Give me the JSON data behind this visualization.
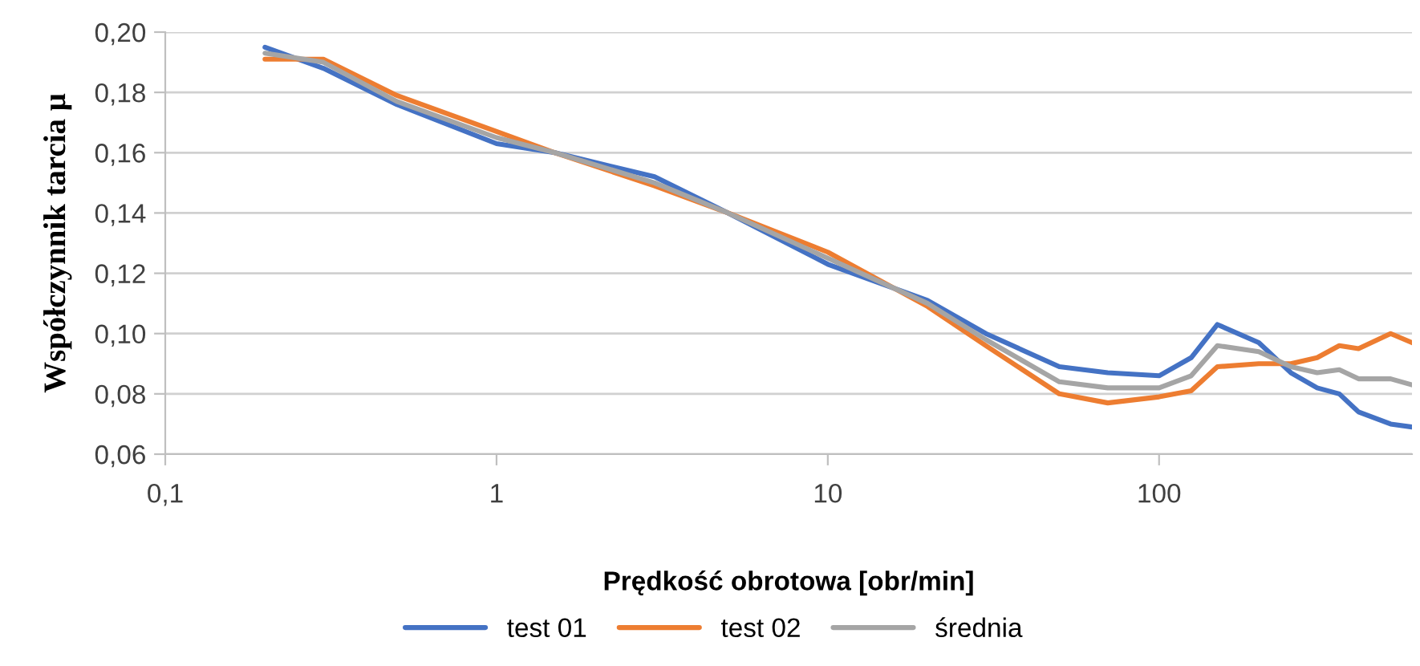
{
  "chart_data": {
    "type": "line",
    "xlabel": "Prędkość obrotowa [obr/min]",
    "ylabel": "Współczynnik tarcia μ",
    "x": [
      0.2,
      0.3,
      0.5,
      1,
      1.5,
      3,
      5,
      10,
      20,
      30,
      50,
      70,
      100,
      125,
      150,
      200,
      250,
      300,
      350,
      400,
      500,
      580
    ],
    "series": [
      {
        "name": "test 01",
        "color": "#4472c4",
        "values": [
          0.195,
          0.188,
          0.176,
          0.163,
          0.16,
          0.152,
          0.14,
          0.123,
          0.111,
          0.1,
          0.089,
          0.087,
          0.086,
          0.092,
          0.103,
          0.097,
          0.087,
          0.082,
          0.08,
          0.074,
          0.07,
          0.069
        ]
      },
      {
        "name": "test 02",
        "color": "#ed7d31",
        "values": [
          0.191,
          0.191,
          0.179,
          0.167,
          0.16,
          0.149,
          0.14,
          0.127,
          0.109,
          0.096,
          0.08,
          0.077,
          0.079,
          0.081,
          0.089,
          0.09,
          0.09,
          0.092,
          0.096,
          0.095,
          0.1,
          0.097
        ]
      },
      {
        "name": "średnia",
        "color": "#a5a5a5",
        "values": [
          0.193,
          0.19,
          0.177,
          0.165,
          0.16,
          0.15,
          0.14,
          0.125,
          0.11,
          0.098,
          0.084,
          0.082,
          0.082,
          0.086,
          0.096,
          0.094,
          0.089,
          0.087,
          0.088,
          0.085,
          0.085,
          0.083
        ]
      }
    ],
    "log": "x",
    "xlim": [
      0.1,
      580
    ],
    "xticks": [
      {
        "value": 0.1,
        "label": "0,1"
      },
      1,
      10,
      100
    ],
    "ylim": [
      0.06,
      0.2
    ],
    "yticks": [
      {
        "value": 0.06,
        "label": "0,06"
      },
      {
        "value": 0.08,
        "label": "0,08"
      },
      {
        "value": 0.1,
        "label": "0,10"
      },
      {
        "value": 0.12,
        "label": "0,12"
      },
      {
        "value": 0.14,
        "label": "0,14"
      },
      {
        "value": 0.16,
        "label": "0,16"
      },
      {
        "value": 0.18,
        "label": "0,18"
      },
      {
        "value": 0.2,
        "label": "0,20"
      }
    ],
    "grid": "y",
    "legend": "bottom",
    "marker": "none",
    "line_style": "solid"
  }
}
